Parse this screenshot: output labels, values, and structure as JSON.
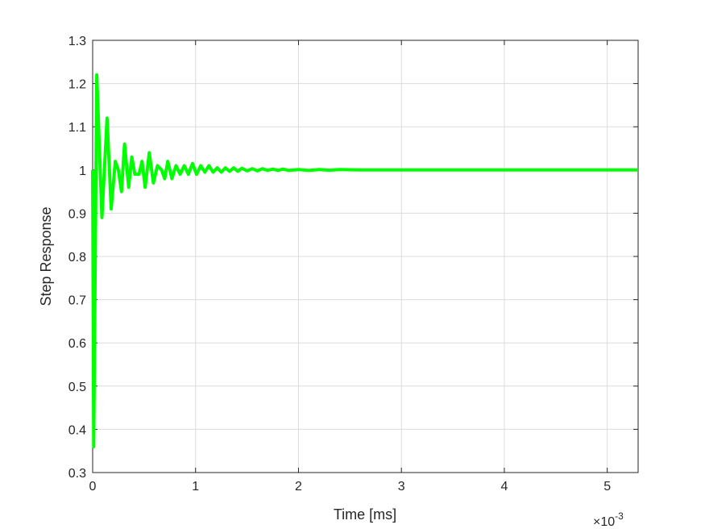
{
  "chart_data": {
    "type": "line",
    "x_label": "Time [ms]",
    "y_label": "Step Response",
    "x_exponent_base": "×10",
    "x_exponent_power": "-3",
    "xlim": [
      0,
      5.3
    ],
    "ylim": [
      0.3,
      1.3
    ],
    "xticks": [
      0,
      1,
      2,
      3,
      4,
      5
    ],
    "yticks": [
      0.3,
      0.4,
      0.5,
      0.6,
      0.7,
      0.8,
      0.9,
      1,
      1.1,
      1.2,
      1.3
    ],
    "grid": true,
    "series": [
      {
        "color": "#00ff00",
        "x": [
          0,
          0.01,
          0.04,
          0.09,
          0.14,
          0.18,
          0.22,
          0.25,
          0.28,
          0.31,
          0.35,
          0.38,
          0.41,
          0.45,
          0.48,
          0.51,
          0.55,
          0.59,
          0.63,
          0.67,
          0.7,
          0.73,
          0.77,
          0.81,
          0.85,
          0.89,
          0.93,
          0.97,
          1.01,
          1.05,
          1.09,
          1.13,
          1.17,
          1.21,
          1.25,
          1.29,
          1.33,
          1.37,
          1.41,
          1.45,
          1.5,
          1.55,
          1.6,
          1.65,
          1.7,
          1.75,
          1.8,
          1.85,
          1.9,
          2.0,
          2.1,
          2.2,
          2.3,
          2.4,
          2.6,
          3.0,
          5.3
        ],
        "values": [
          1.0,
          0.36,
          1.22,
          0.89,
          1.12,
          0.91,
          1.02,
          1.0,
          0.95,
          1.06,
          0.96,
          1.03,
          0.99,
          0.99,
          1.02,
          0.96,
          1.04,
          0.97,
          1.01,
          1.0,
          0.98,
          1.02,
          0.98,
          1.01,
          0.99,
          1.01,
          0.99,
          1.015,
          0.99,
          1.01,
          0.995,
          1.01,
          0.995,
          1.005,
          0.995,
          1.005,
          0.997,
          1.005,
          0.997,
          1.004,
          0.998,
          1.003,
          0.998,
          1.003,
          0.999,
          1.002,
          0.999,
          1.002,
          0.999,
          1.001,
          0.999,
          1.001,
          0.9995,
          1.001,
          1.0,
          1.0,
          1.0
        ]
      }
    ]
  }
}
